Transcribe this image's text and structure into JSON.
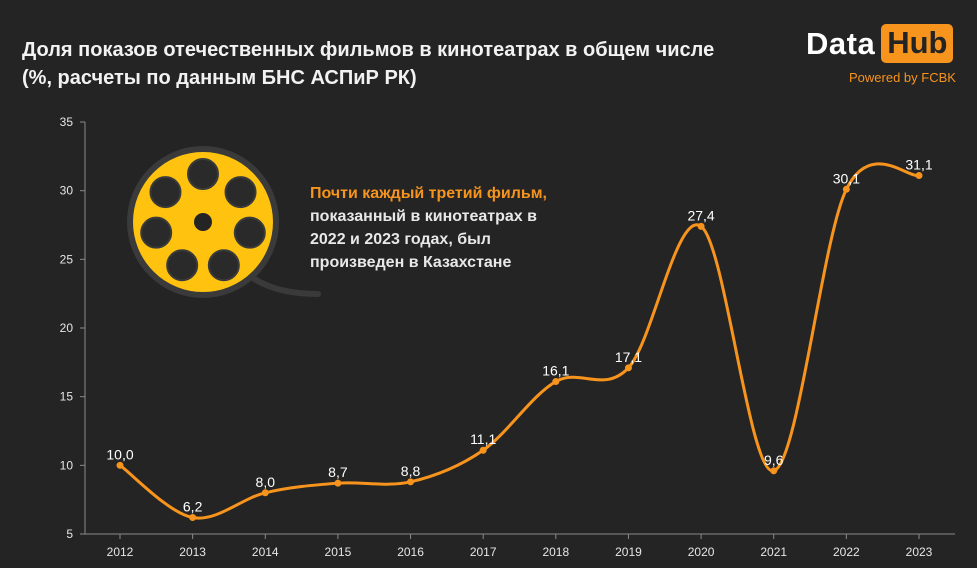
{
  "header": {
    "title_line1": "Доля показов отечественных фильмов в кинотеатрах в общем числе",
    "title_line2": "(%, расчеты по данным БНС АСПиР РК)"
  },
  "logo": {
    "data_text": "Data",
    "hub_text": "Hub",
    "powered_by": "Powered by FCBK"
  },
  "callout": {
    "highlight": "Почти каждый третий фильм,",
    "rest": "показанный в кинотеатрах в\n2022 и 2023 годах, был\nпроизведен в Казахстане",
    "icon": "film-reel-icon"
  },
  "colors": {
    "background": "#242424",
    "line": "#f7941d",
    "reel": "#ffc20e",
    "reel_stroke": "#3a3a3a",
    "text": "#ffffff"
  },
  "chart_data": {
    "type": "line",
    "categories": [
      "2012",
      "2013",
      "2014",
      "2015",
      "2016",
      "2017",
      "2018",
      "2019",
      "2020",
      "2021",
      "2022",
      "2023"
    ],
    "values": [
      10.0,
      6.2,
      8.0,
      8.7,
      8.8,
      11.1,
      16.1,
      17.1,
      27.4,
      9.6,
      30.1,
      31.1
    ],
    "value_labels": [
      "10,0",
      "6,2",
      "8,0",
      "8,7",
      "8,8",
      "11,1",
      "16,1",
      "17,1",
      "27,4",
      "9,6",
      "30,1",
      "31,1"
    ],
    "yticks": [
      "5",
      "10",
      "15",
      "20",
      "25",
      "30",
      "35"
    ],
    "ylim": [
      5,
      35
    ],
    "smooth": true,
    "grid": false
  }
}
